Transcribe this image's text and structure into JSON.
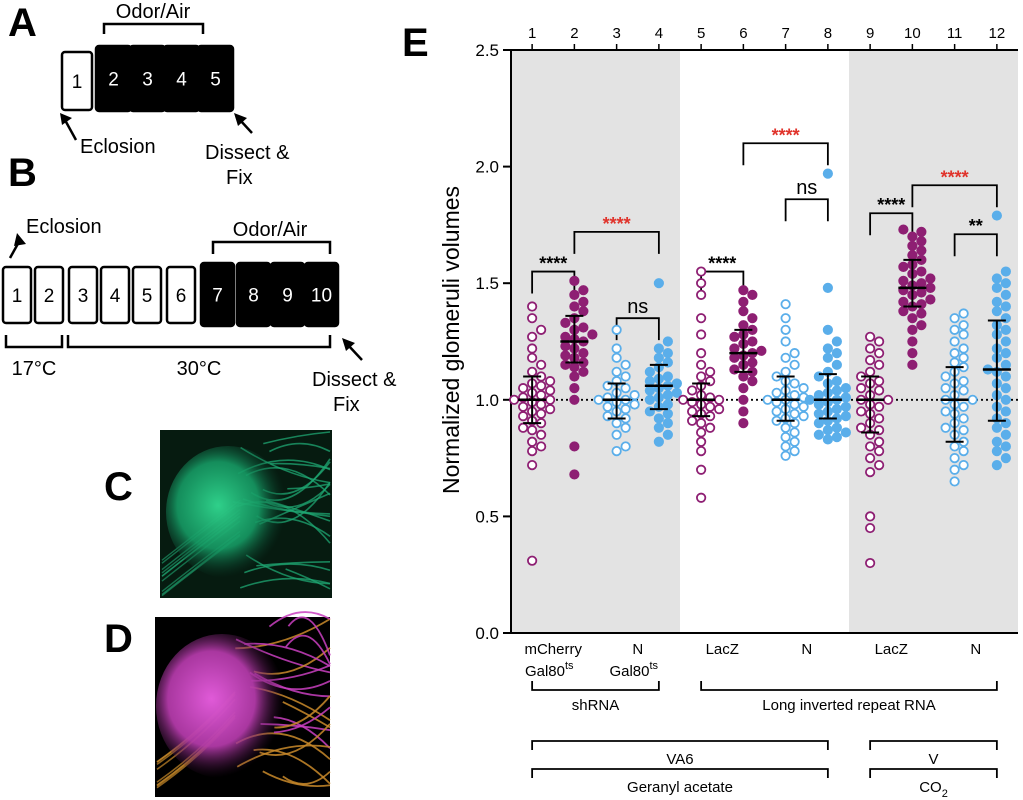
{
  "panel_a": {
    "letter": "A",
    "bracket_label": "Odor/Air",
    "boxes": [
      {
        "n": "1",
        "fill": "white"
      },
      {
        "n": "2",
        "fill": "black"
      },
      {
        "n": "3",
        "fill": "black"
      },
      {
        "n": "4",
        "fill": "black"
      },
      {
        "n": "5",
        "fill": "black"
      }
    ],
    "eclosion": "Eclosion",
    "dissect_1": "Dissect &",
    "dissect_2": "Fix"
  },
  "panel_b": {
    "letter": "B",
    "eclosion": "Eclosion",
    "bracket_label": "Odor/Air",
    "boxes": [
      {
        "n": "1",
        "fill": "white"
      },
      {
        "n": "2",
        "fill": "white"
      },
      {
        "n": "3",
        "fill": "white"
      },
      {
        "n": "4",
        "fill": "white"
      },
      {
        "n": "5",
        "fill": "white"
      },
      {
        "n": "6",
        "fill": "white"
      },
      {
        "n": "7",
        "fill": "black"
      },
      {
        "n": "8",
        "fill": "black"
      },
      {
        "n": "9",
        "fill": "black"
      },
      {
        "n": "10",
        "fill": "black"
      }
    ],
    "temp_low": "17°C",
    "temp_high": "30°C",
    "dissect_1": "Dissect &",
    "dissect_2": "Fix"
  },
  "panel_c": {
    "letter": "C",
    "color": "#1fa873"
  },
  "panel_d": {
    "letter": "D",
    "color_main": "#c93fc0",
    "color_fiber": "#c98a2a"
  },
  "chart_data": {
    "type": "scatter",
    "letter": "E",
    "ylabel": "Normalized glomeruli volumes",
    "ylim": [
      0,
      2.5
    ],
    "yticks": [
      "0.0",
      "0.5",
      "1.0",
      "1.5",
      "2.0",
      "2.5"
    ],
    "reference_line": 1.0,
    "top_labels": [
      "1",
      "2",
      "3",
      "4",
      "5",
      "6",
      "7",
      "8",
      "9",
      "10",
      "11",
      "12"
    ],
    "shaded_groups": [
      [
        1,
        4
      ],
      [
        9,
        12
      ]
    ],
    "colors": {
      "purple": "#8e1f73",
      "blue": "#5aaeea",
      "sig_red": "#e0332b",
      "shade": "#e3e3e3"
    },
    "series": [
      {
        "group": 1,
        "color": "purple",
        "filled": false,
        "median": 1.0,
        "q1": 0.9,
        "q3": 1.1,
        "points": [
          0.31,
          0.72,
          0.78,
          0.8,
          0.82,
          0.85,
          0.87,
          0.88,
          0.9,
          0.91,
          0.93,
          0.94,
          0.95,
          0.96,
          0.97,
          0.98,
          0.99,
          1.0,
          1.0,
          1.01,
          1.02,
          1.03,
          1.04,
          1.05,
          1.06,
          1.07,
          1.08,
          1.1,
          1.12,
          1.15,
          1.18,
          1.22,
          1.27,
          1.3,
          1.35,
          1.4
        ]
      },
      {
        "group": 2,
        "color": "purple",
        "filled": true,
        "median": 1.25,
        "q1": 1.16,
        "q3": 1.36,
        "points": [
          0.68,
          0.8,
          1.0,
          1.05,
          1.1,
          1.12,
          1.14,
          1.15,
          1.16,
          1.18,
          1.19,
          1.2,
          1.22,
          1.23,
          1.25,
          1.26,
          1.27,
          1.28,
          1.3,
          1.31,
          1.33,
          1.35,
          1.38,
          1.4,
          1.42,
          1.45,
          1.47,
          1.51
        ]
      },
      {
        "group": 3,
        "color": "blue",
        "filled": false,
        "median": 1.0,
        "q1": 0.92,
        "q3": 1.07,
        "points": [
          0.78,
          0.8,
          0.85,
          0.88,
          0.9,
          0.92,
          0.93,
          0.95,
          0.96,
          0.97,
          0.98,
          0.99,
          1.0,
          1.0,
          1.01,
          1.02,
          1.03,
          1.05,
          1.06,
          1.08,
          1.1,
          1.12,
          1.15,
          1.18,
          1.22,
          1.3
        ]
      },
      {
        "group": 4,
        "color": "blue",
        "filled": true,
        "median": 1.06,
        "q1": 0.96,
        "q3": 1.15,
        "points": [
          0.82,
          0.85,
          0.88,
          0.9,
          0.92,
          0.94,
          0.95,
          0.97,
          0.98,
          1.0,
          1.01,
          1.02,
          1.03,
          1.04,
          1.05,
          1.06,
          1.07,
          1.08,
          1.09,
          1.1,
          1.12,
          1.14,
          1.16,
          1.18,
          1.2,
          1.22,
          1.25,
          1.5
        ]
      },
      {
        "group": 5,
        "color": "purple",
        "filled": false,
        "median": 1.0,
        "q1": 0.93,
        "q3": 1.07,
        "points": [
          0.58,
          0.7,
          0.78,
          0.82,
          0.86,
          0.88,
          0.9,
          0.91,
          0.93,
          0.94,
          0.95,
          0.96,
          0.97,
          0.98,
          0.99,
          1.0,
          1.0,
          1.01,
          1.02,
          1.04,
          1.06,
          1.08,
          1.1,
          1.12,
          1.15,
          1.2,
          1.28,
          1.35,
          1.45,
          1.5,
          1.55
        ]
      },
      {
        "group": 6,
        "color": "purple",
        "filled": true,
        "median": 1.2,
        "q1": 1.12,
        "q3": 1.3,
        "points": [
          0.9,
          0.95,
          1.0,
          1.05,
          1.08,
          1.1,
          1.12,
          1.13,
          1.15,
          1.16,
          1.18,
          1.19,
          1.2,
          1.21,
          1.22,
          1.24,
          1.25,
          1.27,
          1.28,
          1.3,
          1.32,
          1.35,
          1.38,
          1.42,
          1.45,
          1.47
        ]
      },
      {
        "group": 7,
        "color": "blue",
        "filled": false,
        "median": 1.0,
        "q1": 0.91,
        "q3": 1.1,
        "points": [
          0.76,
          0.78,
          0.8,
          0.82,
          0.84,
          0.86,
          0.88,
          0.9,
          0.91,
          0.92,
          0.93,
          0.94,
          0.95,
          0.96,
          0.97,
          0.98,
          0.99,
          1.0,
          1.0,
          1.01,
          1.02,
          1.03,
          1.04,
          1.05,
          1.07,
          1.08,
          1.1,
          1.12,
          1.15,
          1.18,
          1.2,
          1.25,
          1.3,
          1.35,
          1.41
        ]
      },
      {
        "group": 8,
        "color": "blue",
        "filled": true,
        "median": 1.0,
        "q1": 0.92,
        "q3": 1.11,
        "points": [
          0.83,
          0.84,
          0.85,
          0.86,
          0.87,
          0.88,
          0.9,
          0.91,
          0.92,
          0.93,
          0.94,
          0.95,
          0.96,
          0.97,
          0.98,
          0.99,
          1.0,
          1.0,
          1.01,
          1.02,
          1.03,
          1.04,
          1.05,
          1.07,
          1.08,
          1.1,
          1.12,
          1.15,
          1.18,
          1.2,
          1.22,
          1.25,
          1.3,
          1.48,
          1.97
        ]
      },
      {
        "group": 9,
        "color": "purple",
        "filled": false,
        "median": 1.0,
        "q1": 0.86,
        "q3": 1.1,
        "points": [
          0.3,
          0.45,
          0.5,
          0.69,
          0.72,
          0.75,
          0.78,
          0.8,
          0.82,
          0.85,
          0.87,
          0.88,
          0.9,
          0.92,
          0.94,
          0.95,
          0.97,
          0.98,
          1.0,
          1.0,
          1.02,
          1.04,
          1.05,
          1.07,
          1.08,
          1.1,
          1.12,
          1.15,
          1.17,
          1.2,
          1.22,
          1.25,
          1.27
        ]
      },
      {
        "group": 10,
        "color": "purple",
        "filled": true,
        "median": 1.48,
        "q1": 1.4,
        "q3": 1.6,
        "points": [
          1.15,
          1.2,
          1.25,
          1.3,
          1.32,
          1.35,
          1.37,
          1.38,
          1.4,
          1.41,
          1.42,
          1.43,
          1.45,
          1.46,
          1.47,
          1.48,
          1.49,
          1.5,
          1.51,
          1.52,
          1.54,
          1.55,
          1.57,
          1.58,
          1.6,
          1.62,
          1.64,
          1.66,
          1.68,
          1.7,
          1.72,
          1.73
        ]
      },
      {
        "group": 11,
        "color": "blue",
        "filled": false,
        "median": 1.0,
        "q1": 0.82,
        "q3": 1.14,
        "points": [
          0.65,
          0.7,
          0.72,
          0.75,
          0.78,
          0.8,
          0.82,
          0.85,
          0.87,
          0.88,
          0.9,
          0.92,
          0.94,
          0.95,
          0.97,
          0.98,
          1.0,
          1.0,
          1.02,
          1.04,
          1.05,
          1.07,
          1.08,
          1.1,
          1.12,
          1.14,
          1.16,
          1.18,
          1.2,
          1.22,
          1.25,
          1.28,
          1.3,
          1.32,
          1.35,
          1.37
        ]
      },
      {
        "group": 12,
        "color": "blue",
        "filled": true,
        "median": 1.13,
        "q1": 0.91,
        "q3": 1.34,
        "points": [
          0.72,
          0.75,
          0.78,
          0.8,
          0.82,
          0.85,
          0.88,
          0.9,
          0.92,
          0.95,
          0.97,
          1.0,
          1.02,
          1.05,
          1.07,
          1.1,
          1.12,
          1.13,
          1.15,
          1.18,
          1.2,
          1.22,
          1.25,
          1.28,
          1.3,
          1.32,
          1.35,
          1.38,
          1.4,
          1.42,
          1.45,
          1.48,
          1.5,
          1.52,
          1.55,
          1.79
        ]
      }
    ],
    "significance": [
      {
        "from": 1,
        "to": 2,
        "label": "****",
        "color": "black",
        "level": 1.55
      },
      {
        "from": 3,
        "to": 4,
        "label": "ns",
        "color": "black",
        "level": 1.35
      },
      {
        "from": 2,
        "to": 4,
        "label": "****",
        "color": "red",
        "level": 1.72
      },
      {
        "from": 5,
        "to": 6,
        "label": "****",
        "color": "black",
        "level": 1.55
      },
      {
        "from": 7,
        "to": 8,
        "label": "ns",
        "color": "black",
        "level": 1.86
      },
      {
        "from": 6,
        "to": 8,
        "label": "****",
        "color": "red",
        "level": 2.1
      },
      {
        "from": 9,
        "to": 10,
        "label": "****",
        "color": "black",
        "level": 1.8
      },
      {
        "from": 11,
        "to": 12,
        "label": "**",
        "color": "black",
        "level": 1.71
      },
      {
        "from": 10,
        "to": 12,
        "label": "****",
        "color": "red",
        "level": 1.92
      }
    ],
    "x_labels": [
      {
        "groups": [
          1,
          2
        ],
        "line1": "mCherry",
        "line2_base": "Gal80",
        "line2_sup": "ts"
      },
      {
        "groups": [
          3,
          4
        ],
        "line1": "N",
        "line2_base": "Gal80",
        "line2_sup": "ts"
      },
      {
        "groups": [
          5,
          6
        ],
        "line1": "LacZ",
        "line2_base": "",
        "line2_sup": ""
      },
      {
        "groups": [
          7,
          8
        ],
        "line1": "N",
        "line2_base": "",
        "line2_sup": ""
      },
      {
        "groups": [
          9,
          10
        ],
        "line1": "LacZ",
        "line2_base": "",
        "line2_sup": ""
      },
      {
        "groups": [
          11,
          12
        ],
        "line1": "N",
        "line2_base": "",
        "line2_sup": ""
      }
    ],
    "category_brackets": [
      {
        "row": 1,
        "groups": [
          1,
          4
        ],
        "label": "shRNA"
      },
      {
        "row": 1,
        "groups": [
          5,
          12
        ],
        "label": "Long inverted repeat RNA"
      },
      {
        "row": 2,
        "groups": [
          1,
          8
        ],
        "label": "VA6"
      },
      {
        "row": 2,
        "groups": [
          9,
          12
        ],
        "label": "V"
      },
      {
        "row": 3,
        "groups": [
          1,
          8
        ],
        "label": "Geranyl acetate"
      },
      {
        "row": 3,
        "groups": [
          9,
          12
        ],
        "label_base": "CO",
        "label_sub": "2"
      }
    ]
  }
}
